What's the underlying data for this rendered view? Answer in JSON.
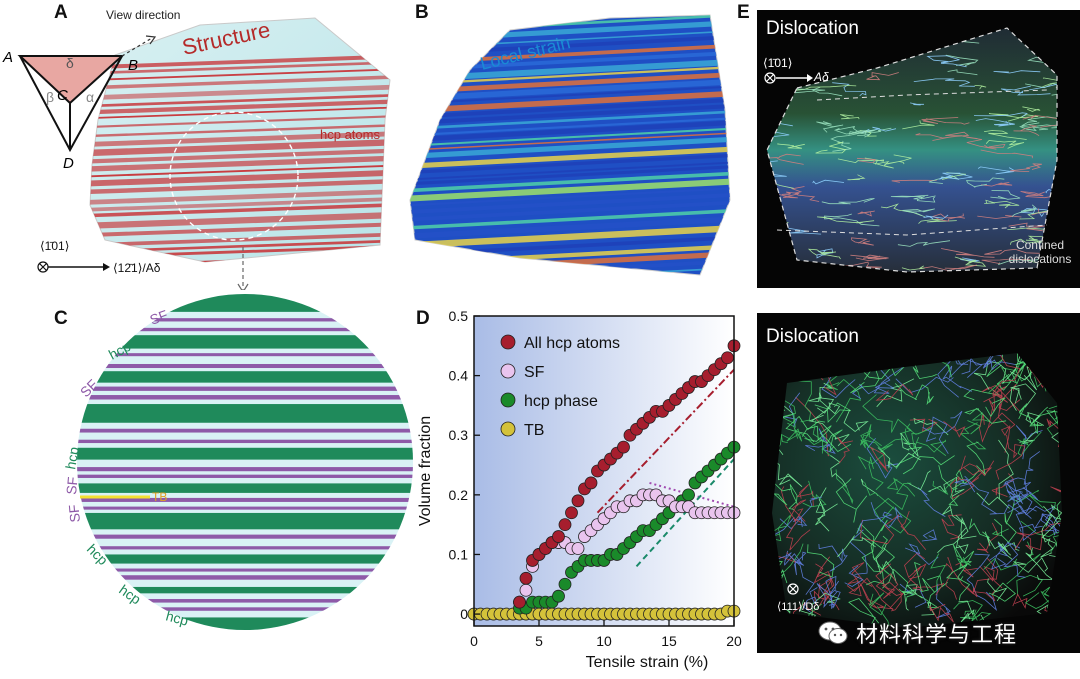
{
  "panels": {
    "A": {
      "label": "A",
      "title": "Structure",
      "hcp_label": "hcp atoms",
      "view_direction": "View direction",
      "tetra_vertices": [
        "A",
        "B",
        "C",
        "D"
      ],
      "tetra_greek": [
        "δ",
        "β",
        "α"
      ],
      "axis_normal": "⟨1̄01⟩",
      "axis_arrow": "⟨12̄1⟩/Aδ"
    },
    "B": {
      "label": "B",
      "title": "Local strain"
    },
    "C": {
      "label": "C",
      "annotations": [
        "SF",
        "hcp",
        "SF",
        "hcp",
        "SF",
        "SF",
        "TB",
        "hcp",
        "hcp",
        "hcp"
      ]
    },
    "D": {
      "label": "D"
    },
    "E": {
      "label": "E",
      "top_title": "Dislocation",
      "top_axis_normal": "⟨1̄01⟩",
      "top_axis_arrow": "Aδ",
      "confined_line1": "Confined",
      "confined_line2": "dislocations",
      "bottom_title": "Dislocation",
      "bottom_axis": "⟨111⟩/Dδ"
    }
  },
  "watermark": "材料科学与工程",
  "colors": {
    "hcp_red": "#c0392b",
    "sf_purple": "#8e5aa8",
    "hcp_green": "#1f8a5b",
    "tb_yellow": "#e8d43a"
  },
  "chart_data": {
    "type": "scatter",
    "xlabel": "Tensile strain (%)",
    "ylabel": "Volume fraction",
    "xlim": [
      0,
      20
    ],
    "ylim": [
      -0.02,
      0.5
    ],
    "xticks": [
      0,
      5,
      10,
      15,
      20
    ],
    "yticks": [
      0,
      0.1,
      0.2,
      0.3,
      0.4,
      0.5
    ],
    "legend_location": "top-left",
    "series": [
      {
        "name": "All hcp atoms",
        "color": "#a61e2e",
        "x": [
          3.5,
          4,
          4.5,
          5,
          5.5,
          6,
          6.5,
          7,
          7.5,
          8,
          8.5,
          9,
          9.5,
          10,
          10.5,
          11,
          11.5,
          12,
          12.5,
          13,
          13.5,
          14,
          14.5,
          15,
          15.5,
          16,
          16.5,
          17,
          17.5,
          18,
          18.5,
          19,
          19.5,
          20
        ],
        "y": [
          0.02,
          0.06,
          0.09,
          0.1,
          0.11,
          0.12,
          0.13,
          0.15,
          0.17,
          0.19,
          0.21,
          0.22,
          0.24,
          0.25,
          0.26,
          0.27,
          0.28,
          0.3,
          0.31,
          0.32,
          0.33,
          0.34,
          0.34,
          0.35,
          0.36,
          0.37,
          0.38,
          0.39,
          0.39,
          0.4,
          0.41,
          0.42,
          0.43,
          0.45
        ]
      },
      {
        "name": "SF",
        "color": "#e9c4ee",
        "x": [
          3.5,
          4,
          4.5,
          5,
          5.5,
          6,
          6.5,
          7,
          7.5,
          8,
          8.5,
          9,
          9.5,
          10,
          10.5,
          11,
          11.5,
          12,
          12.5,
          13,
          13.5,
          14,
          14.5,
          15,
          15.5,
          16,
          16.5,
          17,
          17.5,
          18,
          18.5,
          19,
          19.5,
          20
        ],
        "y": [
          0.02,
          0.04,
          0.08,
          0.1,
          0.11,
          0.12,
          0.12,
          0.12,
          0.11,
          0.11,
          0.13,
          0.14,
          0.15,
          0.16,
          0.17,
          0.18,
          0.18,
          0.19,
          0.19,
          0.2,
          0.2,
          0.2,
          0.19,
          0.19,
          0.18,
          0.18,
          0.18,
          0.17,
          0.17,
          0.17,
          0.17,
          0.17,
          0.17,
          0.17
        ]
      },
      {
        "name": "hcp phase",
        "color": "#1a8a2a",
        "x": [
          3.5,
          4,
          4.5,
          5,
          5.5,
          6,
          6.5,
          7,
          7.5,
          8,
          8.5,
          9,
          9.5,
          10,
          10.5,
          11,
          11.5,
          12,
          12.5,
          13,
          13.5,
          14,
          14.5,
          15,
          15.5,
          16,
          16.5,
          17,
          17.5,
          18,
          18.5,
          19,
          19.5,
          20
        ],
        "y": [
          0.01,
          0.01,
          0.02,
          0.02,
          0.02,
          0.02,
          0.03,
          0.05,
          0.07,
          0.08,
          0.09,
          0.09,
          0.09,
          0.09,
          0.1,
          0.1,
          0.11,
          0.12,
          0.13,
          0.14,
          0.14,
          0.15,
          0.16,
          0.17,
          0.18,
          0.19,
          0.2,
          0.22,
          0.23,
          0.24,
          0.25,
          0.26,
          0.27,
          0.28
        ]
      },
      {
        "name": "TB",
        "color": "#d4c23a",
        "x": [
          0,
          0.5,
          1,
          1.5,
          2,
          2.5,
          3,
          3.5,
          4,
          4.5,
          5,
          5.5,
          6,
          6.5,
          7,
          7.5,
          8,
          8.5,
          9,
          9.5,
          10,
          10.5,
          11,
          11.5,
          12,
          12.5,
          13,
          13.5,
          14,
          14.5,
          15,
          15.5,
          16,
          16.5,
          17,
          17.5,
          18,
          18.5,
          19,
          19.5,
          20
        ],
        "y": [
          0,
          0,
          0,
          0,
          0,
          0,
          0,
          0,
          0,
          0,
          0,
          0,
          0,
          0,
          0,
          0,
          0,
          0,
          0,
          0,
          0,
          0,
          0,
          0,
          0,
          0,
          0,
          0,
          0,
          0,
          0,
          0,
          0,
          0,
          0,
          0,
          0,
          0,
          0,
          0.005,
          0.005
        ]
      }
    ],
    "guide_lines": [
      {
        "color": "#a61e2e",
        "x": [
          9.5,
          20
        ],
        "y": [
          0.17,
          0.41
        ]
      },
      {
        "color": "#a04ab0",
        "x": [
          13.5,
          20
        ],
        "y": [
          0.22,
          0.18
        ]
      },
      {
        "color": "#1a8a6a",
        "x": [
          12.5,
          20
        ],
        "y": [
          0.08,
          0.26
        ]
      }
    ]
  }
}
